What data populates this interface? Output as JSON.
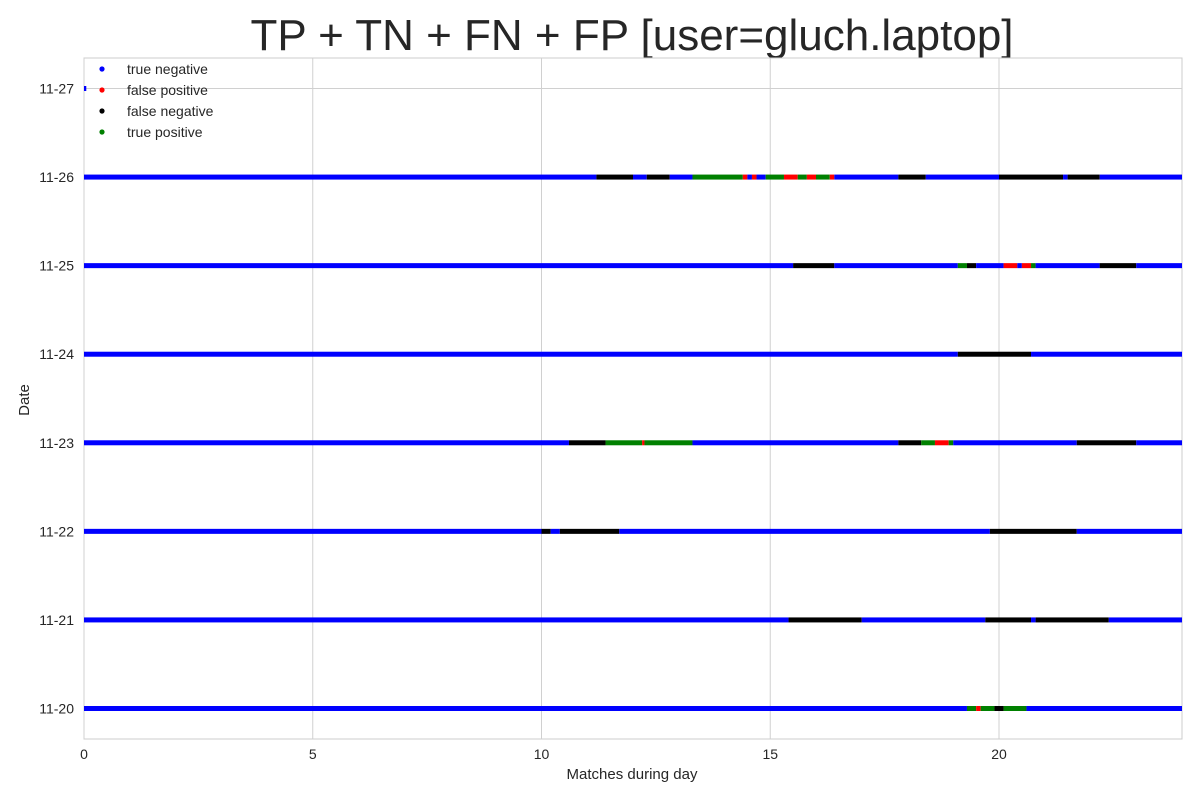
{
  "chart_data": {
    "type": "scatter",
    "title": "TP + TN + FN + FP [user=gluch.laptop]",
    "xlabel": "Matches during day",
    "ylabel": "Date",
    "xlim": [
      0,
      24
    ],
    "x_ticks": [
      0,
      5,
      10,
      15,
      20
    ],
    "y_categories": [
      "11-20",
      "11-21",
      "11-22",
      "11-23",
      "11-24",
      "11-25",
      "11-26",
      "11-27"
    ],
    "grid": true,
    "legend_position": "top-left",
    "series": [
      {
        "name": "true negative",
        "color": "#0000ff"
      },
      {
        "name": "false positive",
        "color": "#ff0000"
      },
      {
        "name": "false negative",
        "color": "#000000"
      },
      {
        "name": "true positive",
        "color": "#008000"
      }
    ],
    "rows": [
      {
        "date": "11-20",
        "segments": [
          {
            "series": "true negative",
            "start": 0,
            "end": 19.3
          },
          {
            "series": "true positive",
            "start": 19.3,
            "end": 19.5
          },
          {
            "series": "false positive",
            "start": 19.5,
            "end": 19.6
          },
          {
            "series": "true positive",
            "start": 19.6,
            "end": 19.9
          },
          {
            "series": "false negative",
            "start": 19.9,
            "end": 20.1
          },
          {
            "series": "true positive",
            "start": 20.1,
            "end": 20.6
          },
          {
            "series": "true negative",
            "start": 20.6,
            "end": 24
          }
        ]
      },
      {
        "date": "11-21",
        "segments": [
          {
            "series": "true negative",
            "start": 0,
            "end": 15.4
          },
          {
            "series": "false negative",
            "start": 15.4,
            "end": 17.0
          },
          {
            "series": "true negative",
            "start": 17.0,
            "end": 19.7
          },
          {
            "series": "false negative",
            "start": 19.7,
            "end": 20.7
          },
          {
            "series": "true negative",
            "start": 20.7,
            "end": 20.8
          },
          {
            "series": "false negative",
            "start": 20.8,
            "end": 22.4
          },
          {
            "series": "true negative",
            "start": 22.4,
            "end": 24
          }
        ]
      },
      {
        "date": "11-22",
        "segments": [
          {
            "series": "true negative",
            "start": 0,
            "end": 10.0
          },
          {
            "series": "false negative",
            "start": 10.0,
            "end": 10.2
          },
          {
            "series": "true negative",
            "start": 10.2,
            "end": 10.4
          },
          {
            "series": "false negative",
            "start": 10.4,
            "end": 11.7
          },
          {
            "series": "true negative",
            "start": 11.7,
            "end": 19.8
          },
          {
            "series": "false negative",
            "start": 19.8,
            "end": 21.7
          },
          {
            "series": "true negative",
            "start": 21.7,
            "end": 24
          }
        ]
      },
      {
        "date": "11-23",
        "segments": [
          {
            "series": "true negative",
            "start": 0,
            "end": 10.6
          },
          {
            "series": "false negative",
            "start": 10.6,
            "end": 11.4
          },
          {
            "series": "true positive",
            "start": 11.4,
            "end": 12.2
          },
          {
            "series": "false positive",
            "start": 12.2,
            "end": 12.25
          },
          {
            "series": "true positive",
            "start": 12.25,
            "end": 13.3
          },
          {
            "series": "true negative",
            "start": 13.3,
            "end": 17.8
          },
          {
            "series": "false negative",
            "start": 17.8,
            "end": 18.3
          },
          {
            "series": "true positive",
            "start": 18.3,
            "end": 18.6
          },
          {
            "series": "false positive",
            "start": 18.6,
            "end": 18.9
          },
          {
            "series": "true positive",
            "start": 18.9,
            "end": 19.0
          },
          {
            "series": "true negative",
            "start": 19.0,
            "end": 21.7
          },
          {
            "series": "false negative",
            "start": 21.7,
            "end": 23.0
          },
          {
            "series": "true negative",
            "start": 23.0,
            "end": 24
          }
        ]
      },
      {
        "date": "11-24",
        "segments": [
          {
            "series": "true negative",
            "start": 0,
            "end": 19.1
          },
          {
            "series": "false negative",
            "start": 19.1,
            "end": 20.7
          },
          {
            "series": "true negative",
            "start": 20.7,
            "end": 24
          }
        ]
      },
      {
        "date": "11-25",
        "segments": [
          {
            "series": "true negative",
            "start": 0,
            "end": 15.5
          },
          {
            "series": "false negative",
            "start": 15.5,
            "end": 16.4
          },
          {
            "series": "true negative",
            "start": 16.4,
            "end": 19.1
          },
          {
            "series": "true positive",
            "start": 19.1,
            "end": 19.3
          },
          {
            "series": "false negative",
            "start": 19.3,
            "end": 19.5
          },
          {
            "series": "true negative",
            "start": 19.5,
            "end": 20.1
          },
          {
            "series": "false positive",
            "start": 20.1,
            "end": 20.4
          },
          {
            "series": "true negative",
            "start": 20.4,
            "end": 20.5
          },
          {
            "series": "false positive",
            "start": 20.5,
            "end": 20.7
          },
          {
            "series": "true positive",
            "start": 20.7,
            "end": 20.8
          },
          {
            "series": "true negative",
            "start": 20.8,
            "end": 22.2
          },
          {
            "series": "false negative",
            "start": 22.2,
            "end": 23.0
          },
          {
            "series": "true negative",
            "start": 23.0,
            "end": 24
          }
        ]
      },
      {
        "date": "11-26",
        "segments": [
          {
            "series": "true negative",
            "start": 0,
            "end": 11.2
          },
          {
            "series": "false negative",
            "start": 11.2,
            "end": 12.0
          },
          {
            "series": "true negative",
            "start": 12.0,
            "end": 12.3
          },
          {
            "series": "false negative",
            "start": 12.3,
            "end": 12.8
          },
          {
            "series": "true negative",
            "start": 12.8,
            "end": 13.3
          },
          {
            "series": "true positive",
            "start": 13.3,
            "end": 14.4
          },
          {
            "series": "false positive",
            "start": 14.4,
            "end": 14.5
          },
          {
            "series": "true negative",
            "start": 14.5,
            "end": 14.6
          },
          {
            "series": "false positive",
            "start": 14.6,
            "end": 14.7
          },
          {
            "series": "true negative",
            "start": 14.7,
            "end": 14.9
          },
          {
            "series": "true positive",
            "start": 14.9,
            "end": 15.3
          },
          {
            "series": "false positive",
            "start": 15.3,
            "end": 15.6
          },
          {
            "series": "true positive",
            "start": 15.6,
            "end": 15.8
          },
          {
            "series": "false positive",
            "start": 15.8,
            "end": 16.0
          },
          {
            "series": "true positive",
            "start": 16.0,
            "end": 16.3
          },
          {
            "series": "false positive",
            "start": 16.3,
            "end": 16.4
          },
          {
            "series": "true negative",
            "start": 16.4,
            "end": 17.8
          },
          {
            "series": "false negative",
            "start": 17.8,
            "end": 18.4
          },
          {
            "series": "true negative",
            "start": 18.4,
            "end": 20.0
          },
          {
            "series": "false negative",
            "start": 20.0,
            "end": 21.4
          },
          {
            "series": "true negative",
            "start": 21.4,
            "end": 21.5
          },
          {
            "series": "false negative",
            "start": 21.5,
            "end": 22.2
          },
          {
            "series": "true negative",
            "start": 22.2,
            "end": 24
          }
        ]
      },
      {
        "date": "11-27",
        "segments": [
          {
            "series": "true negative",
            "start": 0,
            "end": 0.05
          }
        ]
      }
    ]
  }
}
